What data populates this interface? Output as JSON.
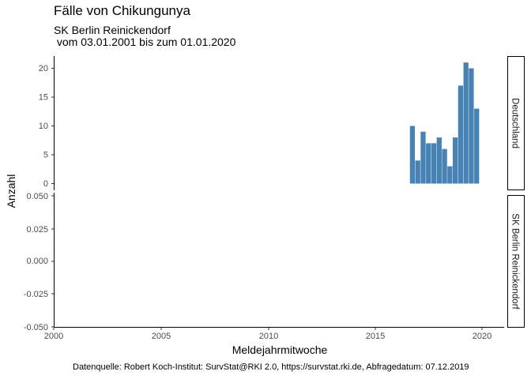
{
  "title": "Fälle von Chikungunya",
  "subtitle_line1": "SK Berlin Reinickendorf",
  "subtitle_line2": " vom 03.01.2001 bis zum 01.01.2020",
  "caption": "Datenquelle: Robert Koch-Institut: SurvStat@RKI 2.0, https://survstat.rki.de, Abfragedatum: 07.12.2019",
  "colors": {
    "bar": "#4682b4",
    "axis": "#000000",
    "tick_text": "#4d4d4d"
  },
  "chart_data": {
    "type": "bar",
    "xlabel": "Meldejahrmitwoche",
    "ylabel": "Anzahl",
    "xlim": [
      2000,
      2021.2
    ],
    "x_ticks": [
      "2000",
      "2005",
      "2010",
      "2015",
      "2020"
    ],
    "grid": false,
    "facets": [
      {
        "strip": "Deutschland",
        "ylim": [
          0,
          22
        ],
        "y_ticks": [
          "0",
          "5",
          "10",
          "15",
          "20"
        ],
        "bars": [
          {
            "x": 2016.75,
            "value": 10
          },
          {
            "x": 2017.0,
            "value": 4
          },
          {
            "x": 2017.25,
            "value": 9
          },
          {
            "x": 2017.5,
            "value": 7
          },
          {
            "x": 2017.75,
            "value": 7
          },
          {
            "x": 2018.0,
            "value": 8
          },
          {
            "x": 2018.25,
            "value": 6
          },
          {
            "x": 2018.5,
            "value": 3
          },
          {
            "x": 2018.75,
            "value": 8
          },
          {
            "x": 2019.0,
            "value": 17
          },
          {
            "x": 2019.25,
            "value": 21
          },
          {
            "x": 2019.5,
            "value": 20
          },
          {
            "x": 2019.75,
            "value": 13
          }
        ]
      },
      {
        "strip": "SK Berlin Reinickendorf",
        "ylim": [
          -0.05,
          0.05
        ],
        "y_ticks": [
          "0.050",
          "0.025",
          "0.000",
          "-0.025",
          "-0.050"
        ],
        "bars": []
      }
    ]
  }
}
